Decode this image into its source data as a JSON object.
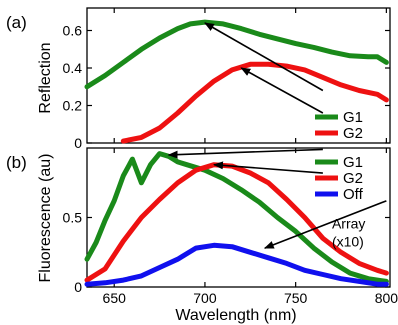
{
  "chart_data": [
    {
      "type": "line",
      "panel_label": "(a)",
      "ylabel": "Reflection",
      "xlim": [
        635,
        802
      ],
      "ylim": [
        0,
        0.72
      ],
      "yticks": [
        0,
        0.2,
        0.4,
        0.6
      ],
      "ytick_labels": [
        "0",
        "0.2",
        "0.4",
        "0.6"
      ],
      "grid": false,
      "legend_position": "right",
      "series": [
        {
          "name": "G1",
          "color": "#1a8a1a",
          "x": [
            635,
            645,
            655,
            665,
            675,
            685,
            692,
            700,
            710,
            720,
            730,
            740,
            750,
            760,
            770,
            780,
            790,
            795,
            800
          ],
          "y": [
            0.3,
            0.36,
            0.43,
            0.5,
            0.56,
            0.61,
            0.635,
            0.645,
            0.635,
            0.61,
            0.58,
            0.555,
            0.53,
            0.51,
            0.485,
            0.465,
            0.46,
            0.46,
            0.43
          ]
        },
        {
          "name": "G2",
          "color": "#ee1111",
          "x": [
            655,
            665,
            675,
            685,
            695,
            705,
            715,
            725,
            735,
            745,
            755,
            765,
            775,
            785,
            795,
            800
          ],
          "y": [
            0.01,
            0.03,
            0.08,
            0.16,
            0.25,
            0.33,
            0.39,
            0.42,
            0.42,
            0.41,
            0.39,
            0.35,
            0.31,
            0.28,
            0.26,
            0.23
          ]
        }
      ],
      "annotations": [
        {
          "type": "arrow",
          "from": [
            765,
            0.28
          ],
          "to": [
            700,
            0.64
          ]
        },
        {
          "type": "arrow",
          "from": [
            765,
            0.16
          ],
          "to": [
            720,
            0.4
          ]
        }
      ]
    },
    {
      "type": "line",
      "panel_label": "(b)",
      "ylabel": "Fluorescence (au)",
      "xlabel": "Wavelength (nm)",
      "xlim": [
        635,
        802
      ],
      "ylim": [
        0,
        1.0
      ],
      "xticks": [
        650,
        700,
        750,
        800
      ],
      "xtick_labels": [
        "650",
        "700",
        "750",
        "800"
      ],
      "yticks": [
        0,
        0.5
      ],
      "ytick_labels": [
        "0",
        "0.5"
      ],
      "grid": false,
      "legend_position": "right",
      "series": [
        {
          "name": "G1",
          "color": "#1a8a1a",
          "x": [
            635,
            640,
            645,
            650,
            655,
            660,
            665,
            670,
            675,
            680,
            685,
            690,
            700,
            710,
            720,
            730,
            740,
            750,
            760,
            770,
            780,
            790,
            800
          ],
          "y": [
            0.2,
            0.32,
            0.48,
            0.62,
            0.8,
            0.92,
            0.75,
            0.88,
            0.96,
            0.94,
            0.9,
            0.88,
            0.84,
            0.78,
            0.7,
            0.61,
            0.5,
            0.4,
            0.28,
            0.18,
            0.1,
            0.06,
            0.04
          ]
        },
        {
          "name": "G2",
          "color": "#ee1111",
          "x": [
            635,
            645,
            655,
            665,
            675,
            685,
            695,
            705,
            715,
            725,
            735,
            745,
            755,
            765,
            775,
            785,
            795,
            800
          ],
          "y": [
            0.05,
            0.13,
            0.33,
            0.5,
            0.63,
            0.75,
            0.84,
            0.88,
            0.87,
            0.82,
            0.75,
            0.63,
            0.5,
            0.35,
            0.25,
            0.17,
            0.12,
            0.1
          ]
        },
        {
          "name": "Off",
          "color": "#1010ee",
          "x": [
            635,
            645,
            655,
            665,
            675,
            685,
            695,
            705,
            715,
            725,
            735,
            745,
            755,
            765,
            775,
            785,
            795,
            800
          ],
          "y": [
            0.02,
            0.03,
            0.05,
            0.08,
            0.14,
            0.2,
            0.28,
            0.3,
            0.29,
            0.25,
            0.21,
            0.17,
            0.12,
            0.09,
            0.06,
            0.04,
            0.02,
            0.02
          ]
        }
      ],
      "annotations": [
        {
          "type": "arrow",
          "from": [
            765,
            0.99
          ],
          "to": [
            680,
            0.95
          ]
        },
        {
          "type": "arrow",
          "from": [
            765,
            0.82
          ],
          "to": [
            705,
            0.88
          ]
        },
        {
          "type": "arrow",
          "from": [
            800,
            0.62
          ],
          "to": [
            733,
            0.28
          ]
        },
        {
          "type": "text",
          "lines": [
            "Array",
            "(x10)"
          ],
          "at": [
            770,
            0.42
          ]
        }
      ]
    }
  ]
}
